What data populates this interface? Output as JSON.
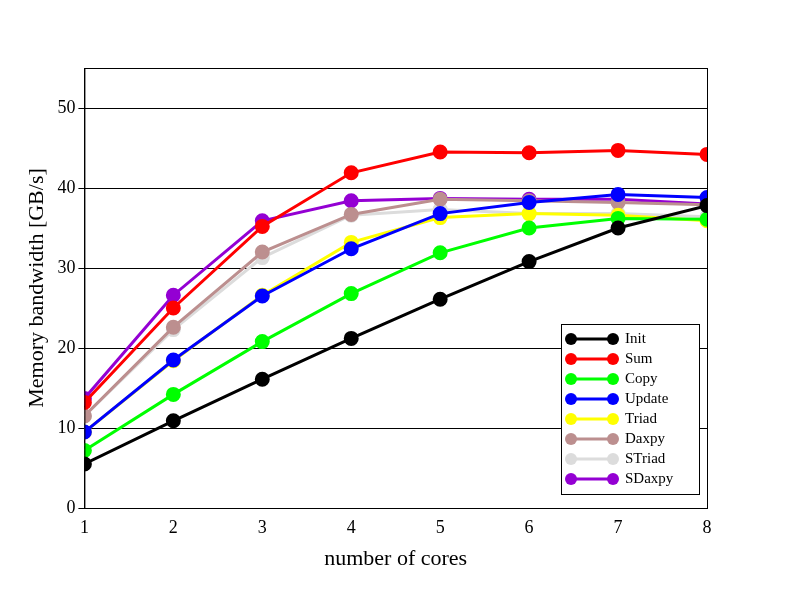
{
  "chart_data": {
    "type": "line",
    "x_label": "number of cores",
    "y_label": "Memory bandwidth [GB/s]",
    "x": [
      1,
      2,
      3,
      4,
      5,
      6,
      7,
      8
    ],
    "xlim": [
      1,
      8
    ],
    "xticks": [
      1,
      2,
      3,
      4,
      5,
      6,
      7,
      8
    ],
    "ylim": [
      0,
      55
    ],
    "yticks": [
      0,
      10,
      20,
      30,
      40,
      50
    ],
    "grid": true,
    "legend": "lower right",
    "marker": "circle",
    "series": [
      {
        "name": "Init",
        "color": "#000000",
        "values": [
          5.5,
          10.9,
          16.1,
          21.2,
          26.1,
          30.8,
          35.0,
          37.8
        ]
      },
      {
        "name": "Sum",
        "color": "#ff0000",
        "values": [
          13.2,
          25.0,
          35.2,
          41.9,
          44.5,
          44.4,
          44.7,
          44.2
        ]
      },
      {
        "name": "Copy",
        "color": "#00ff00",
        "values": [
          7.2,
          14.2,
          20.8,
          26.8,
          31.9,
          35.0,
          36.2,
          36.1
        ]
      },
      {
        "name": "Update",
        "color": "#0000ff",
        "values": [
          9.5,
          18.5,
          26.5,
          32.4,
          36.8,
          38.2,
          39.2,
          38.8
        ]
      },
      {
        "name": "Triad",
        "color": "#ffff00",
        "values": [
          9.5,
          18.4,
          26.6,
          33.2,
          36.3,
          36.8,
          36.6,
          35.9
        ]
      },
      {
        "name": "Daxpy",
        "color": "#bc8f8f",
        "values": [
          11.5,
          22.6,
          32.0,
          36.7,
          38.6,
          38.4,
          38.2,
          37.9
        ]
      },
      {
        "name": "STriad",
        "color": "#dcdcdc",
        "values": [
          11.5,
          22.3,
          31.3,
          36.6,
          37.3,
          36.8,
          36.8,
          36.4
        ]
      },
      {
        "name": "SDaxpy",
        "color": "#9400d3",
        "values": [
          13.7,
          26.6,
          35.9,
          38.4,
          38.7,
          38.6,
          38.6,
          38.0
        ]
      }
    ]
  }
}
